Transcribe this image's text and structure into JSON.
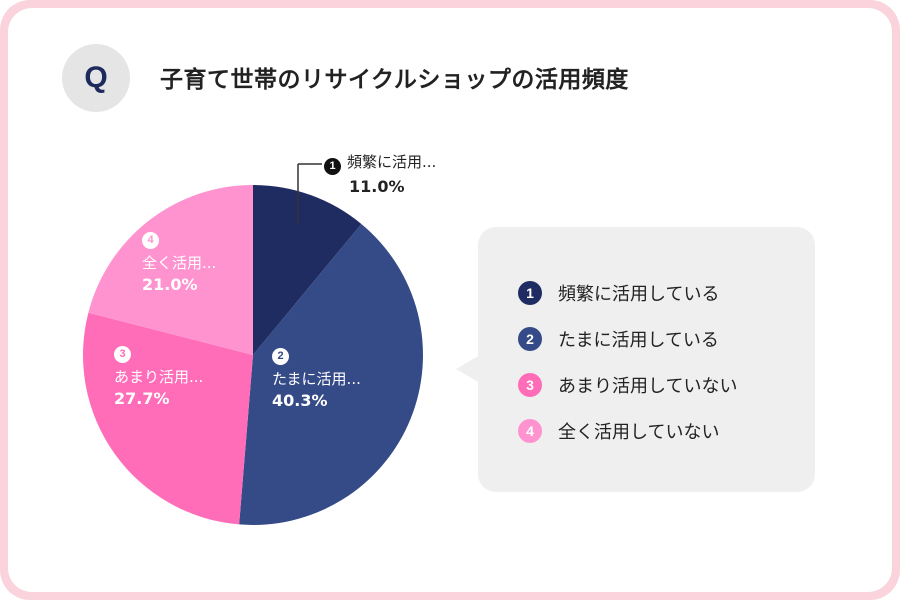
{
  "question_badge": "Q",
  "title": "子育て世帯のリサイクルショップの活用頻度",
  "chart_data": {
    "type": "pie",
    "title": "子育て世帯のリサイクルショップの活用頻度",
    "slices": [
      {
        "num": "1",
        "label": "頻繁に活用している",
        "short_label": "頻繁に活用...",
        "value": 11.0,
        "value_text": "11.0%",
        "color": "#1f2c62"
      },
      {
        "num": "2",
        "label": "たまに活用している",
        "short_label": "たまに活用...",
        "value": 40.3,
        "value_text": "40.3%",
        "color": "#354b87"
      },
      {
        "num": "3",
        "label": "あまり活用していない",
        "short_label": "あまり活用...",
        "value": 27.7,
        "value_text": "27.7%",
        "color": "#ff6db9"
      },
      {
        "num": "4",
        "label": "全く活用していない",
        "short_label": "全く活用...",
        "value": 21.0,
        "value_text": "21.0%",
        "color": "#ff93d0"
      }
    ]
  },
  "colors": {
    "frame": "#fbd3dc",
    "legend_bg": "#efefef",
    "badge_bg": "#e5e5e5",
    "badge_text": "#1f2a5c"
  }
}
